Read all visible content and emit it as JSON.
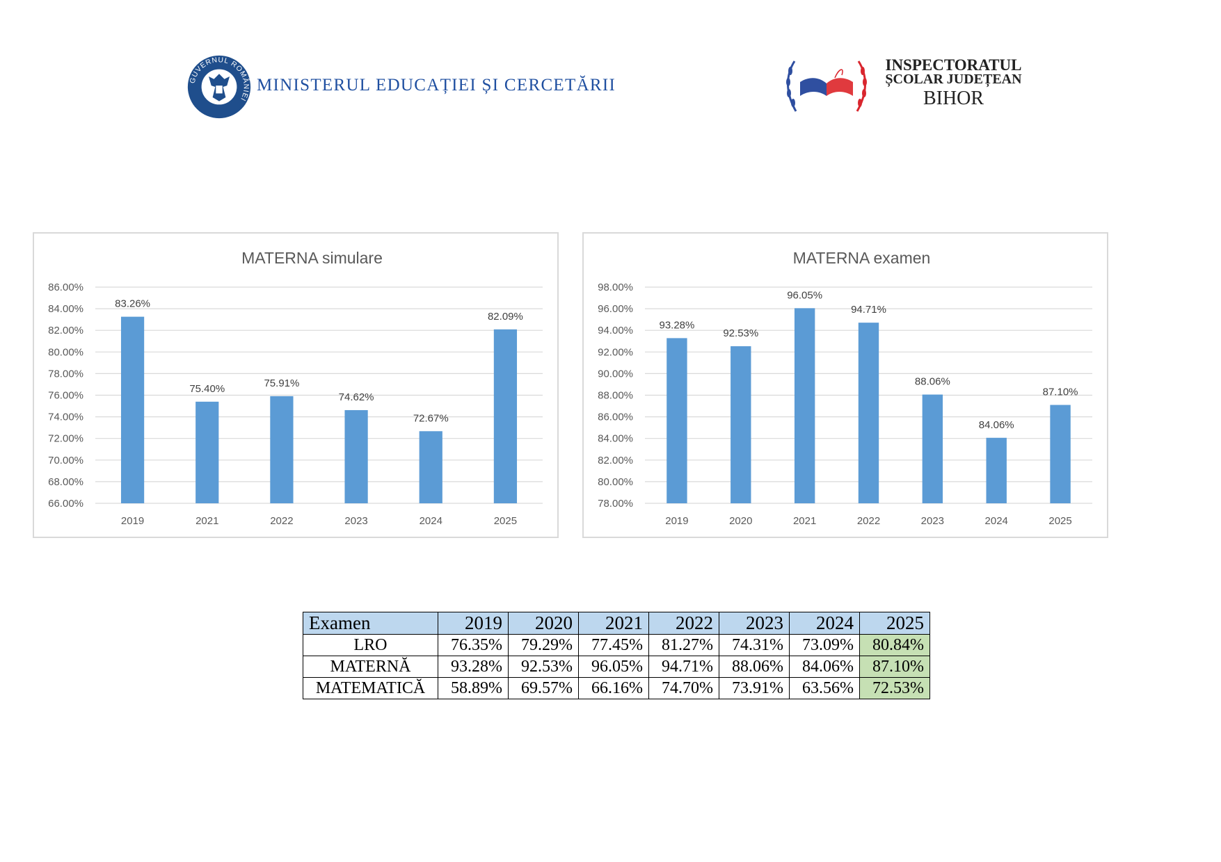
{
  "header": {
    "gov_logo_text": "GUVERNUL ROMÂNIEI",
    "ministry": "MINISTERUL EDUCAȚIEI ȘI CERCETĂRII",
    "isj_line1": "INSPECTORATUL",
    "isj_line2": "ȘCOLAR JUDEȚEAN",
    "isj_line3": "BIHOR"
  },
  "colors": {
    "bar": "#5b9bd5",
    "table_header": "#bdd7ee",
    "highlight": "#c6e0b4",
    "ministry_text": "#1f4fa0"
  },
  "chart_data": [
    {
      "type": "bar",
      "title": "MATERNA simulare",
      "categories": [
        "2019",
        "2021",
        "2022",
        "2023",
        "2024",
        "2025"
      ],
      "values": [
        83.26,
        75.4,
        75.91,
        74.62,
        72.67,
        82.09
      ],
      "data_labels": [
        "83.26%",
        "75.40%",
        "75.91%",
        "74.62%",
        "72.67%",
        "82.09%"
      ],
      "ylim": [
        66,
        86
      ],
      "yticks": [
        "66.00%",
        "68.00%",
        "70.00%",
        "72.00%",
        "74.00%",
        "76.00%",
        "78.00%",
        "80.00%",
        "82.00%",
        "84.00%",
        "86.00%"
      ],
      "grid": true
    },
    {
      "type": "bar",
      "title": "MATERNA examen",
      "categories": [
        "2019",
        "2020",
        "2021",
        "2022",
        "2023",
        "2024",
        "2025"
      ],
      "values": [
        93.28,
        92.53,
        96.05,
        94.71,
        88.06,
        84.06,
        87.1
      ],
      "data_labels": [
        "93.28%",
        "92.53%",
        "96.05%",
        "94.71%",
        "88.06%",
        "84.06%",
        "87.10%"
      ],
      "ylim": [
        78,
        98
      ],
      "yticks": [
        "78.00%",
        "80.00%",
        "82.00%",
        "84.00%",
        "86.00%",
        "88.00%",
        "90.00%",
        "92.00%",
        "94.00%",
        "96.00%",
        "98.00%"
      ],
      "grid": true
    }
  ],
  "table": {
    "headers": [
      "Examen",
      "2019",
      "2020",
      "2021",
      "2022",
      "2023",
      "2024",
      "2025"
    ],
    "rows": [
      [
        "LRO",
        "76.35%",
        "79.29%",
        "77.45%",
        "81.27%",
        "74.31%",
        "73.09%",
        "80.84%"
      ],
      [
        "MATERNĂ",
        "93.28%",
        "92.53%",
        "96.05%",
        "94.71%",
        "88.06%",
        "84.06%",
        "87.10%"
      ],
      [
        "MATEMATICĂ",
        "58.89%",
        "69.57%",
        "66.16%",
        "74.70%",
        "73.91%",
        "63.56%",
        "72.53%"
      ]
    ]
  }
}
